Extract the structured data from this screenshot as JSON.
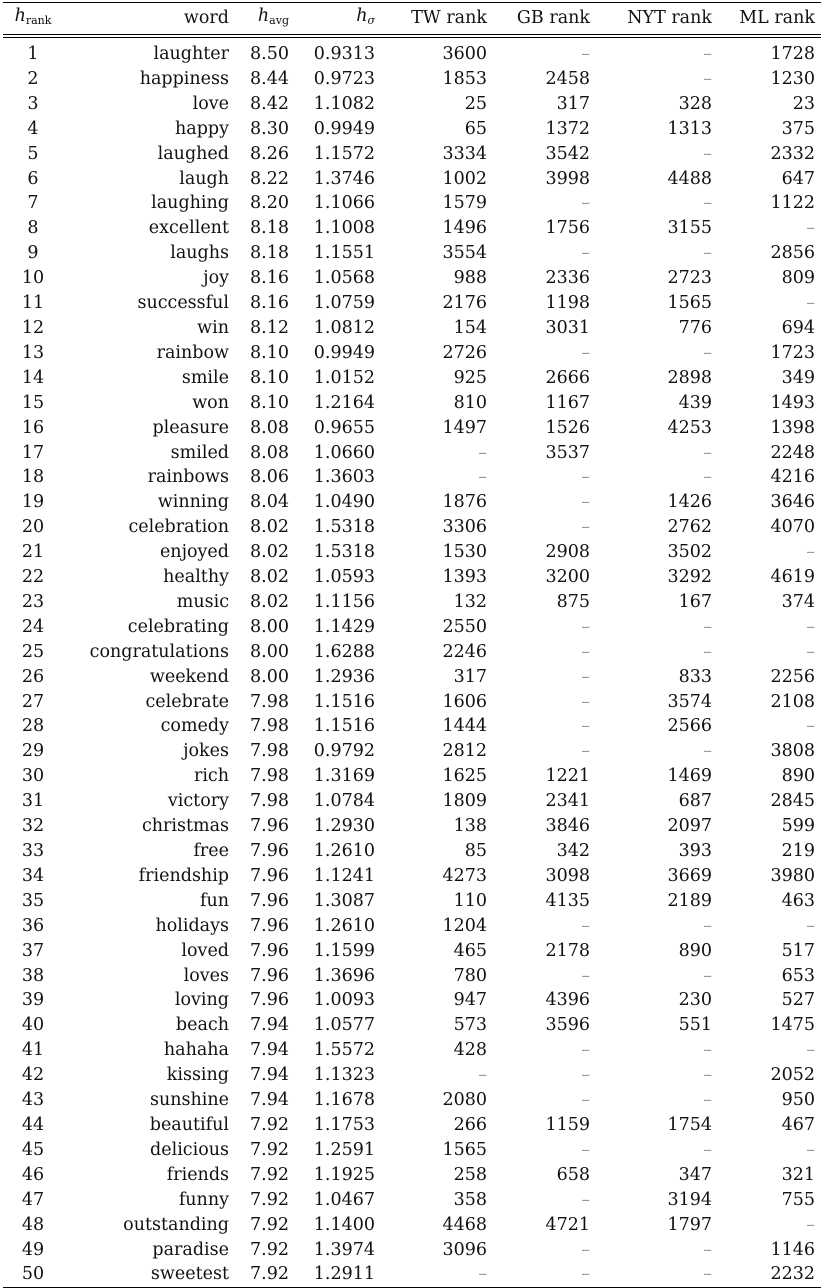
{
  "headers": {
    "rank_main": "h",
    "rank_sub": "rank",
    "word": "word",
    "havg_main": "h",
    "havg_sub": "avg",
    "hsigma_main": "h",
    "hsigma_sub": "σ",
    "tw": "TW rank",
    "gb": "GB rank",
    "nyt": "NYT rank",
    "ml": "ML rank"
  },
  "rows": [
    [
      "1",
      "laughter",
      "8.50",
      "0.9313",
      "3600",
      "–",
      "–",
      "1728"
    ],
    [
      "2",
      "happiness",
      "8.44",
      "0.9723",
      "1853",
      "2458",
      "–",
      "1230"
    ],
    [
      "3",
      "love",
      "8.42",
      "1.1082",
      "25",
      "317",
      "328",
      "23"
    ],
    [
      "4",
      "happy",
      "8.30",
      "0.9949",
      "65",
      "1372",
      "1313",
      "375"
    ],
    [
      "5",
      "laughed",
      "8.26",
      "1.1572",
      "3334",
      "3542",
      "–",
      "2332"
    ],
    [
      "6",
      "laugh",
      "8.22",
      "1.3746",
      "1002",
      "3998",
      "4488",
      "647"
    ],
    [
      "7",
      "laughing",
      "8.20",
      "1.1066",
      "1579",
      "–",
      "–",
      "1122"
    ],
    [
      "8",
      "excellent",
      "8.18",
      "1.1008",
      "1496",
      "1756",
      "3155",
      "–"
    ],
    [
      "9",
      "laughs",
      "8.18",
      "1.1551",
      "3554",
      "–",
      "–",
      "2856"
    ],
    [
      "10",
      "joy",
      "8.16",
      "1.0568",
      "988",
      "2336",
      "2723",
      "809"
    ],
    [
      "11",
      "successful",
      "8.16",
      "1.0759",
      "2176",
      "1198",
      "1565",
      "–"
    ],
    [
      "12",
      "win",
      "8.12",
      "1.0812",
      "154",
      "3031",
      "776",
      "694"
    ],
    [
      "13",
      "rainbow",
      "8.10",
      "0.9949",
      "2726",
      "–",
      "–",
      "1723"
    ],
    [
      "14",
      "smile",
      "8.10",
      "1.0152",
      "925",
      "2666",
      "2898",
      "349"
    ],
    [
      "15",
      "won",
      "8.10",
      "1.2164",
      "810",
      "1167",
      "439",
      "1493"
    ],
    [
      "16",
      "pleasure",
      "8.08",
      "0.9655",
      "1497",
      "1526",
      "4253",
      "1398"
    ],
    [
      "17",
      "smiled",
      "8.08",
      "1.0660",
      "–",
      "3537",
      "–",
      "2248"
    ],
    [
      "18",
      "rainbows",
      "8.06",
      "1.3603",
      "–",
      "–",
      "–",
      "4216"
    ],
    [
      "19",
      "winning",
      "8.04",
      "1.0490",
      "1876",
      "–",
      "1426",
      "3646"
    ],
    [
      "20",
      "celebration",
      "8.02",
      "1.5318",
      "3306",
      "–",
      "2762",
      "4070"
    ],
    [
      "21",
      "enjoyed",
      "8.02",
      "1.5318",
      "1530",
      "2908",
      "3502",
      "–"
    ],
    [
      "22",
      "healthy",
      "8.02",
      "1.0593",
      "1393",
      "3200",
      "3292",
      "4619"
    ],
    [
      "23",
      "music",
      "8.02",
      "1.1156",
      "132",
      "875",
      "167",
      "374"
    ],
    [
      "24",
      "celebrating",
      "8.00",
      "1.1429",
      "2550",
      "–",
      "–",
      "–"
    ],
    [
      "25",
      "congratulations",
      "8.00",
      "1.6288",
      "2246",
      "–",
      "–",
      "–"
    ],
    [
      "26",
      "weekend",
      "8.00",
      "1.2936",
      "317",
      "–",
      "833",
      "2256"
    ],
    [
      "27",
      "celebrate",
      "7.98",
      "1.1516",
      "1606",
      "–",
      "3574",
      "2108"
    ],
    [
      "28",
      "comedy",
      "7.98",
      "1.1516",
      "1444",
      "–",
      "2566",
      "–"
    ],
    [
      "29",
      "jokes",
      "7.98",
      "0.9792",
      "2812",
      "–",
      "–",
      "3808"
    ],
    [
      "30",
      "rich",
      "7.98",
      "1.3169",
      "1625",
      "1221",
      "1469",
      "890"
    ],
    [
      "31",
      "victory",
      "7.98",
      "1.0784",
      "1809",
      "2341",
      "687",
      "2845"
    ],
    [
      "32",
      "christmas",
      "7.96",
      "1.2930",
      "138",
      "3846",
      "2097",
      "599"
    ],
    [
      "33",
      "free",
      "7.96",
      "1.2610",
      "85",
      "342",
      "393",
      "219"
    ],
    [
      "34",
      "friendship",
      "7.96",
      "1.1241",
      "4273",
      "3098",
      "3669",
      "3980"
    ],
    [
      "35",
      "fun",
      "7.96",
      "1.3087",
      "110",
      "4135",
      "2189",
      "463"
    ],
    [
      "36",
      "holidays",
      "7.96",
      "1.2610",
      "1204",
      "–",
      "–",
      "–"
    ],
    [
      "37",
      "loved",
      "7.96",
      "1.1599",
      "465",
      "2178",
      "890",
      "517"
    ],
    [
      "38",
      "loves",
      "7.96",
      "1.3696",
      "780",
      "–",
      "–",
      "653"
    ],
    [
      "39",
      "loving",
      "7.96",
      "1.0093",
      "947",
      "4396",
      "230",
      "527"
    ],
    [
      "40",
      "beach",
      "7.94",
      "1.0577",
      "573",
      "3596",
      "551",
      "1475"
    ],
    [
      "41",
      "hahaha",
      "7.94",
      "1.5572",
      "428",
      "–",
      "–",
      "–"
    ],
    [
      "42",
      "kissing",
      "7.94",
      "1.1323",
      "–",
      "–",
      "–",
      "2052"
    ],
    [
      "43",
      "sunshine",
      "7.94",
      "1.1678",
      "2080",
      "–",
      "–",
      "950"
    ],
    [
      "44",
      "beautiful",
      "7.92",
      "1.1753",
      "266",
      "1159",
      "1754",
      "467"
    ],
    [
      "45",
      "delicious",
      "7.92",
      "1.2591",
      "1565",
      "–",
      "–",
      "–"
    ],
    [
      "46",
      "friends",
      "7.92",
      "1.1925",
      "258",
      "658",
      "347",
      "321"
    ],
    [
      "47",
      "funny",
      "7.92",
      "1.0467",
      "358",
      "–",
      "3194",
      "755"
    ],
    [
      "48",
      "outstanding",
      "7.92",
      "1.1400",
      "4468",
      "4721",
      "1797",
      "–"
    ],
    [
      "49",
      "paradise",
      "7.92",
      "1.3974",
      "3096",
      "–",
      "–",
      "1146"
    ],
    [
      "50",
      "sweetest",
      "7.92",
      "1.2911",
      "–",
      "–",
      "–",
      "2232"
    ]
  ]
}
